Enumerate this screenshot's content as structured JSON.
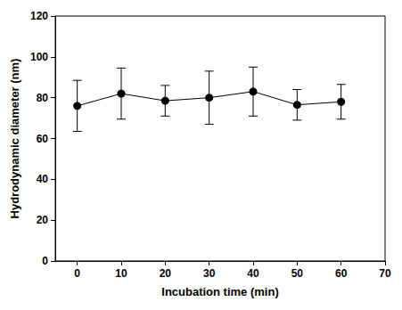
{
  "chart_data": {
    "type": "line",
    "x_label": "Incubation time (min)",
    "y_label": "Hydrodynamic diameter (nm)",
    "x": [
      0,
      10,
      20,
      30,
      40,
      50,
      60
    ],
    "values": [
      76,
      82,
      78.5,
      80,
      83,
      76.5,
      78
    ],
    "errors": [
      12.5,
      12.5,
      7.5,
      13,
      12,
      7.5,
      8.5
    ],
    "color": "#000000",
    "marker": "circle",
    "line_style": "solid",
    "xlim": [
      -5,
      70
    ],
    "xticks": [
      0,
      10,
      20,
      30,
      40,
      50,
      60,
      70
    ],
    "ylim": [
      0,
      120
    ],
    "yticks": [
      0,
      20,
      40,
      60,
      80,
      100,
      120
    ],
    "grid": false
  }
}
